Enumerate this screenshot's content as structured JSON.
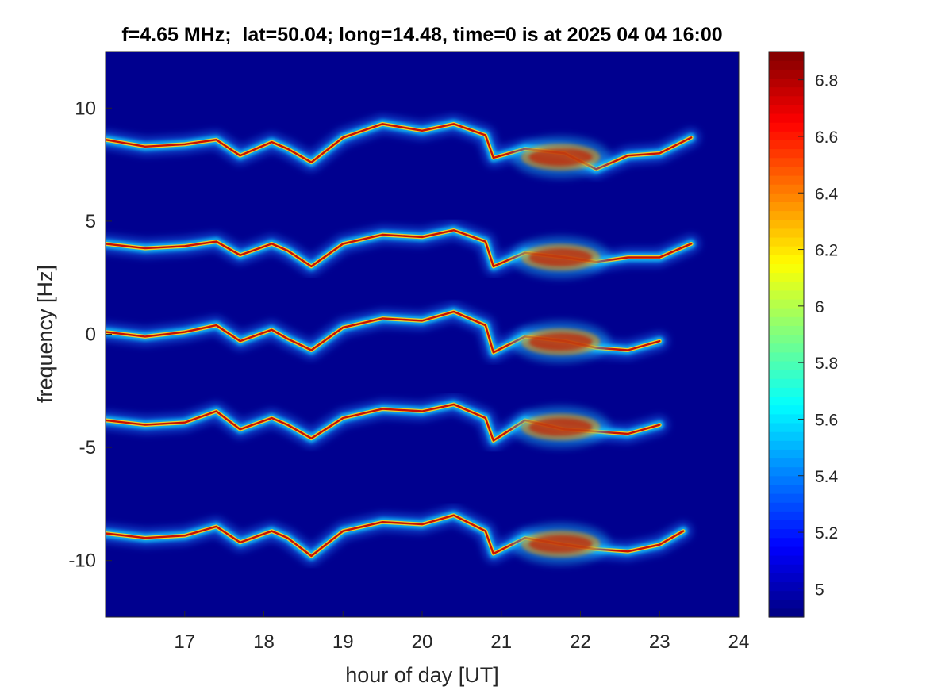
{
  "chart_data": {
    "type": "heatmap",
    "title": "f=4.65 MHz;  lat=50.04; long=14.48, time=0 is at 2025 04 04 16:00",
    "xlabel": "hour of day [UT]",
    "ylabel": "frequency [Hz]",
    "xlim": [
      16,
      24
    ],
    "ylim": [
      -12.5,
      12.5
    ],
    "xticks": [
      17,
      18,
      19,
      20,
      21,
      22,
      23,
      24
    ],
    "xtick_labels": [
      "17",
      "18",
      "19",
      "20",
      "21",
      "22",
      "23",
      "24"
    ],
    "yticks": [
      10,
      5,
      0,
      -5,
      -10
    ],
    "ytick_labels": [
      "10",
      "5",
      "0",
      "-5",
      "-10"
    ],
    "colormap": "jet",
    "background_color": "#00008f",
    "colorbar": {
      "clim": [
        4.9,
        6.9
      ],
      "ticks": [
        6.8,
        6.6,
        6.4,
        6.2,
        6,
        5.8,
        5.6,
        5.4,
        5.2,
        5
      ],
      "tick_labels": [
        "6.8",
        "6.6",
        "6.4",
        "6.2",
        "6",
        "5.8",
        "5.6",
        "5.4",
        "5.2",
        "5"
      ]
    },
    "series": [
      {
        "base_frequency": 8.8,
        "trace": [
          [
            16.0,
            8.6
          ],
          [
            16.5,
            8.3
          ],
          [
            17.0,
            8.4
          ],
          [
            17.4,
            8.6
          ],
          [
            17.7,
            7.9
          ],
          [
            18.1,
            8.5
          ],
          [
            18.3,
            8.2
          ],
          [
            18.6,
            7.6
          ],
          [
            19.0,
            8.7
          ],
          [
            19.5,
            9.3
          ],
          [
            20.0,
            9.0
          ],
          [
            20.4,
            9.3
          ],
          [
            20.8,
            8.8
          ],
          [
            20.9,
            7.8
          ],
          [
            21.3,
            8.2
          ],
          [
            21.8,
            8.0
          ],
          [
            22.2,
            7.3
          ],
          [
            22.6,
            7.9
          ],
          [
            23.0,
            8.0
          ],
          [
            23.4,
            8.7
          ]
        ]
      },
      {
        "base_frequency": 4.0,
        "trace": [
          [
            16.0,
            4.0
          ],
          [
            16.5,
            3.8
          ],
          [
            17.0,
            3.9
          ],
          [
            17.4,
            4.1
          ],
          [
            17.7,
            3.5
          ],
          [
            18.1,
            4.0
          ],
          [
            18.3,
            3.7
          ],
          [
            18.6,
            3.0
          ],
          [
            19.0,
            4.0
          ],
          [
            19.5,
            4.4
          ],
          [
            20.0,
            4.3
          ],
          [
            20.4,
            4.6
          ],
          [
            20.8,
            4.1
          ],
          [
            20.9,
            3.0
          ],
          [
            21.3,
            3.6
          ],
          [
            21.8,
            3.4
          ],
          [
            22.2,
            3.2
          ],
          [
            22.6,
            3.4
          ],
          [
            23.0,
            3.4
          ],
          [
            23.4,
            4.0
          ]
        ]
      },
      {
        "base_frequency": 0.2,
        "trace": [
          [
            16.0,
            0.1
          ],
          [
            16.5,
            -0.1
          ],
          [
            17.0,
            0.1
          ],
          [
            17.4,
            0.4
          ],
          [
            17.7,
            -0.3
          ],
          [
            18.1,
            0.2
          ],
          [
            18.3,
            -0.2
          ],
          [
            18.6,
            -0.7
          ],
          [
            19.0,
            0.3
          ],
          [
            19.5,
            0.7
          ],
          [
            20.0,
            0.6
          ],
          [
            20.4,
            1.0
          ],
          [
            20.8,
            0.4
          ],
          [
            20.9,
            -0.8
          ],
          [
            21.3,
            -0.1
          ],
          [
            21.8,
            -0.3
          ],
          [
            22.2,
            -0.6
          ],
          [
            22.6,
            -0.7
          ],
          [
            23.0,
            -0.3
          ]
        ]
      },
      {
        "base_frequency": -3.8,
        "trace": [
          [
            16.0,
            -3.8
          ],
          [
            16.5,
            -4.0
          ],
          [
            17.0,
            -3.9
          ],
          [
            17.4,
            -3.4
          ],
          [
            17.7,
            -4.2
          ],
          [
            18.1,
            -3.7
          ],
          [
            18.3,
            -4.0
          ],
          [
            18.6,
            -4.6
          ],
          [
            19.0,
            -3.7
          ],
          [
            19.5,
            -3.3
          ],
          [
            20.0,
            -3.4
          ],
          [
            20.4,
            -3.1
          ],
          [
            20.8,
            -3.7
          ],
          [
            20.9,
            -4.7
          ],
          [
            21.3,
            -3.8
          ],
          [
            21.8,
            -4.2
          ],
          [
            22.2,
            -4.3
          ],
          [
            22.6,
            -4.4
          ],
          [
            23.0,
            -4.0
          ]
        ]
      },
      {
        "base_frequency": -8.8,
        "trace": [
          [
            16.0,
            -8.8
          ],
          [
            16.5,
            -9.0
          ],
          [
            17.0,
            -8.9
          ],
          [
            17.4,
            -8.5
          ],
          [
            17.7,
            -9.2
          ],
          [
            18.1,
            -8.7
          ],
          [
            18.3,
            -9.0
          ],
          [
            18.6,
            -9.8
          ],
          [
            19.0,
            -8.7
          ],
          [
            19.5,
            -8.3
          ],
          [
            20.0,
            -8.4
          ],
          [
            20.4,
            -8.0
          ],
          [
            20.8,
            -8.7
          ],
          [
            20.9,
            -9.7
          ],
          [
            21.3,
            -9.0
          ],
          [
            21.8,
            -9.3
          ],
          [
            22.2,
            -9.5
          ],
          [
            22.6,
            -9.6
          ],
          [
            23.0,
            -9.3
          ],
          [
            23.3,
            -8.7
          ]
        ]
      }
    ]
  }
}
